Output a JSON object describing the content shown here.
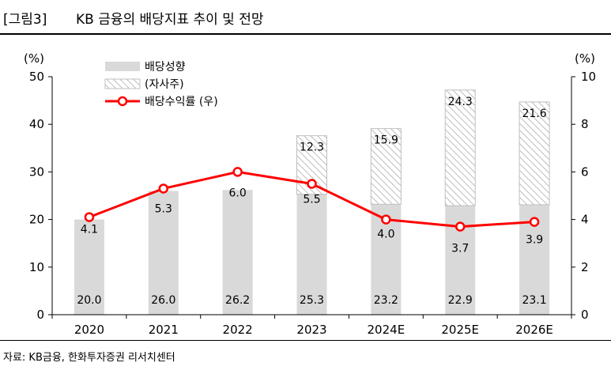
{
  "header": {
    "figure_label": "[그림3]",
    "title": "KB 금융의 배당지표 추이 및 전망"
  },
  "source": "자료: KB금융, 한화투자증권 리서치센터",
  "chart_data": {
    "type": "bar",
    "categories": [
      "2020",
      "2021",
      "2022",
      "2023",
      "2024E",
      "2025E",
      "2026E"
    ],
    "series": [
      {
        "name": "배당성향",
        "kind": "bar-stacked",
        "axis": "left",
        "color": "#d9d9d9",
        "values": [
          20.0,
          26.0,
          26.2,
          25.3,
          23.2,
          22.9,
          23.1
        ],
        "labels": [
          "20.0",
          "26.0",
          "26.2",
          "25.3",
          "23.2",
          "22.9",
          "23.1"
        ]
      },
      {
        "name": "(자사주)",
        "kind": "bar-stacked-hatched",
        "axis": "left",
        "color": "#bfbfbf",
        "values": [
          0,
          0,
          0,
          12.3,
          15.9,
          24.3,
          21.6
        ],
        "labels": [
          "",
          "",
          "",
          "12.3",
          "15.9",
          "24.3",
          "21.6"
        ]
      },
      {
        "name": "배당수익률 (우)",
        "kind": "line",
        "axis": "right",
        "color": "#ff0000",
        "values": [
          4.1,
          5.3,
          6.0,
          5.5,
          4.0,
          3.7,
          3.9
        ],
        "labels": [
          "4.1",
          "5.3",
          "6.0",
          "5.5",
          "4.0",
          "3.7",
          "3.9"
        ]
      }
    ],
    "left_axis": {
      "unit": "(%)",
      "ylim": [
        0,
        50
      ],
      "ticks": [
        "0",
        "10",
        "20",
        "30",
        "40",
        "50"
      ]
    },
    "right_axis": {
      "unit": "(%)",
      "ylim": [
        0,
        10
      ],
      "ticks": [
        "0",
        "2",
        "4",
        "6",
        "8",
        "10"
      ]
    },
    "legend_position": "top-left",
    "grid": false
  }
}
